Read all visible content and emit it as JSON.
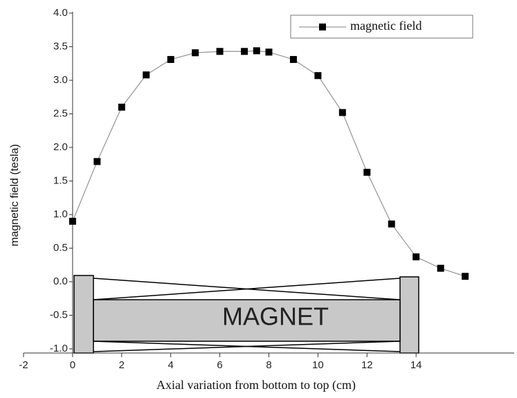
{
  "chart_data": {
    "type": "line",
    "x_label": "Axial variation from bottom to top (cm)",
    "y_label": "magnetic field (tesla)",
    "annotation": "MAGNET",
    "x": [
      0,
      1,
      2,
      3,
      4,
      5,
      6,
      7,
      7.5,
      8,
      9,
      10,
      11,
      12,
      13,
      14,
      15,
      16
    ],
    "series": [
      {
        "name": "magnetic field",
        "color": "#9a9a9a",
        "marker_color": "#000000",
        "values": [
          0.9,
          1.79,
          2.6,
          3.08,
          3.31,
          3.41,
          3.43,
          3.43,
          3.44,
          3.42,
          3.31,
          3.07,
          2.52,
          1.63,
          0.86,
          0.37,
          0.2,
          0.08
        ]
      }
    ],
    "xlim": [
      -2,
      18
    ],
    "xticks": [
      -2,
      0,
      2,
      4,
      6,
      8,
      10,
      12,
      14
    ],
    "ylim": [
      -1,
      4
    ],
    "yticks": [
      {
        "value": -1,
        "label": "-1.0"
      },
      {
        "value": -0.5,
        "label": "-0.5"
      },
      {
        "value": 0,
        "label": "0.0"
      },
      {
        "value": 0.5,
        "label": "0.5"
      },
      {
        "value": 1,
        "label": "1.0"
      },
      {
        "value": 1.5,
        "label": "1.5"
      },
      {
        "value": 2,
        "label": "2.0"
      },
      {
        "value": 2.5,
        "label": "2.5"
      },
      {
        "value": 3,
        "label": "3.0"
      },
      {
        "value": 3.5,
        "label": "3.5"
      },
      {
        "value": 4,
        "label": "4.0"
      }
    ],
    "legend": "upper right"
  }
}
